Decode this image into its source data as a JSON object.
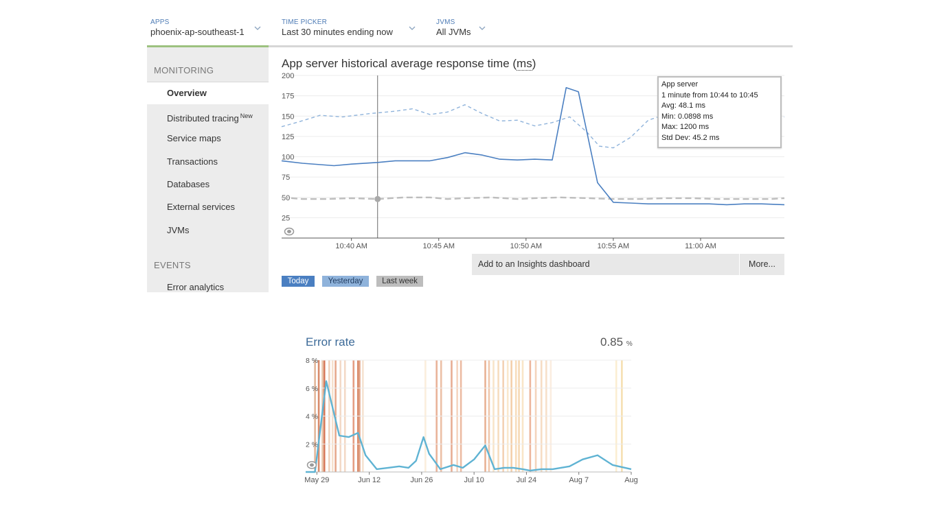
{
  "topbar": {
    "apps": {
      "caption": "APPS",
      "value": "phoenix-ap-southeast-1"
    },
    "time_picker": {
      "caption": "TIME PICKER",
      "value": "Last 30 minutes ending now"
    },
    "jvms": {
      "caption": "JVMS",
      "value": "All JVMs"
    }
  },
  "sidebar": {
    "monitoring_label": "MONITORING",
    "items": [
      {
        "label": "Overview",
        "active": true
      },
      {
        "label": "Distributed tracing",
        "badge": "New"
      },
      {
        "label": "Service maps"
      },
      {
        "label": "Transactions"
      },
      {
        "label": "Databases"
      },
      {
        "label": "External services"
      },
      {
        "label": "JVMs"
      }
    ],
    "events_label": "EVENTS",
    "events_items": [
      {
        "label": "Error analytics"
      }
    ]
  },
  "response_chart": {
    "title_prefix": "App server historical average response time (",
    "title_unit": "ms",
    "title_suffix": ")",
    "tooltip": {
      "lines": [
        "App server",
        "1 minute from 10:44 to 10:45",
        "Avg: 48.1 ms",
        "Min: 0.0898 ms",
        "Max: 1200 ms",
        "Std Dev: 45.2 ms"
      ]
    },
    "insights_label": "Add to an Insights dashboard",
    "more_label": "More...",
    "legend": [
      {
        "label": "Today",
        "color": "#4a7fc1"
      },
      {
        "label": "Yesterday",
        "color": "#8fb3db"
      },
      {
        "label": "Last week",
        "color": "#bdbdbd"
      }
    ]
  },
  "error_panel": {
    "title": "Error rate",
    "value": "0.85",
    "unit": "%"
  },
  "chart_data": [
    {
      "type": "line",
      "title": "App server historical average response time ( ms )",
      "ylim": [
        0,
        200
      ],
      "yticks": [
        25,
        50,
        75,
        100,
        125,
        150,
        175,
        200
      ],
      "xlim": [
        "10:36",
        "10:65"
      ],
      "xticks": [
        "10:40 AM",
        "10:45 AM",
        "10:50 AM",
        "10:55 AM",
        "11:00 AM"
      ],
      "xtick_minutes": [
        40,
        45,
        50,
        55,
        60
      ],
      "crosshair_minute": 41.5,
      "series": [
        {
          "name": "Today",
          "color": "#4a7fc1",
          "style": "solid",
          "x": [
            36,
            37.2,
            39,
            40,
            41.5,
            42.5,
            44.5,
            45.5,
            46.5,
            47.5,
            48.5,
            49.5,
            50.5,
            51.5,
            52.3,
            53,
            54.1,
            55,
            56,
            57,
            58,
            59.5,
            60.5,
            61.5,
            62.5,
            63.5,
            64.8
          ],
          "y": [
            95,
            92,
            89,
            91,
            93,
            95,
            95,
            99,
            105,
            102,
            97,
            96,
            97,
            96,
            185,
            180,
            68,
            44,
            43,
            42,
            42,
            42,
            42,
            41,
            42,
            42,
            41
          ]
        },
        {
          "name": "Yesterday",
          "color": "#8fb3db",
          "style": "dashed",
          "x": [
            36,
            37,
            38.2,
            39.5,
            41,
            42.5,
            43.5,
            44.5,
            45.5,
            46.5,
            47.5,
            48.5,
            49.5,
            50.5,
            51.5,
            52.5,
            53.5,
            54.2,
            55,
            56,
            57,
            58,
            59,
            60,
            61,
            62,
            63,
            64.8
          ],
          "y": [
            137,
            143,
            151,
            149,
            153,
            156,
            159,
            152,
            155,
            164,
            153,
            144,
            145,
            138,
            142,
            149,
            130,
            113,
            111,
            124,
            145,
            152,
            150,
            148,
            144,
            139,
            140,
            149
          ]
        },
        {
          "name": "Last week",
          "color": "#bdbdbd",
          "style": "dashed",
          "x": [
            36,
            37.2,
            38.5,
            40,
            41.5,
            43,
            44.5,
            45.5,
            46.5,
            48,
            49.5,
            50.5,
            52,
            53.5,
            55,
            56.5,
            58,
            59.5,
            61,
            62.5,
            64,
            64.8
          ],
          "y": [
            50,
            48,
            48,
            49,
            48,
            50,
            50,
            48,
            49,
            50,
            48,
            49,
            50,
            49,
            48,
            48,
            49,
            49,
            48,
            48,
            48,
            49
          ]
        }
      ]
    },
    {
      "type": "line",
      "title": "Error rate",
      "ylim": [
        0,
        8
      ],
      "yticks": [
        "2 %",
        "4 %",
        "6 %",
        "8 %"
      ],
      "ytick_values": [
        2,
        4,
        6,
        8
      ],
      "xticks": [
        "May 29",
        "Jun 12",
        "Jun 26",
        "Jul 10",
        "Jul 24",
        "Aug 7",
        "Aug"
      ],
      "xtick_days": [
        0,
        14,
        28,
        42,
        56,
        70,
        84
      ],
      "xlim": [
        -3,
        84
      ],
      "series": [
        {
          "name": "Error rate",
          "color": "#5fb3d3",
          "x": [
            -3,
            -0.5,
            2.5,
            6,
            8.5,
            11,
            13,
            16,
            19,
            22,
            24.5,
            26.5,
            28.5,
            30,
            33,
            36.5,
            39,
            42,
            45,
            47.5,
            50,
            52.5,
            55,
            57,
            60,
            63,
            67.5,
            71,
            75,
            79,
            84
          ],
          "y": [
            0,
            0,
            6.5,
            2.6,
            2.5,
            2.8,
            1.2,
            0.2,
            0.3,
            0.4,
            0.3,
            0.8,
            2.5,
            1.3,
            0.2,
            0.5,
            0.3,
            0.9,
            1.9,
            0.2,
            0.3,
            0.3,
            0.2,
            0.1,
            0.2,
            0.2,
            0.4,
            0.9,
            1.2,
            0.5,
            0.2
          ]
        }
      ],
      "event_bands": [
        {
          "x": -0.5,
          "color": "#e2b69a"
        },
        {
          "x": 0.5,
          "color": "#d98a6a"
        },
        {
          "x": 1.5,
          "color": "#e8c4a9"
        },
        {
          "x": 2.0,
          "color": "#d77a5b"
        },
        {
          "x": 3.3,
          "color": "#f0d2bd"
        },
        {
          "x": 4.2,
          "color": "#f6e0cd"
        },
        {
          "x": 5.0,
          "color": "#e6a88c"
        },
        {
          "x": 6.3,
          "color": "#f3d9c6"
        },
        {
          "x": 7.5,
          "color": "#f3d9c6"
        },
        {
          "x": 9.8,
          "color": "#e59d83"
        },
        {
          "x": 11.0,
          "color": "#d98a6a"
        },
        {
          "x": 11.4,
          "color": "#e2a488"
        },
        {
          "x": 12.3,
          "color": "#f6e3d1"
        },
        {
          "x": 29.0,
          "color": "#fbeedd"
        },
        {
          "x": 32.0,
          "color": "#e9b39a"
        },
        {
          "x": 33.2,
          "color": "#ecbfa6"
        },
        {
          "x": 36.0,
          "color": "#e7ad93"
        },
        {
          "x": 37.5,
          "color": "#f5d5c0"
        },
        {
          "x": 38.5,
          "color": "#ecbba2"
        },
        {
          "x": 45.0,
          "color": "#e8b294"
        },
        {
          "x": 46.0,
          "color": "#f0c8ad"
        },
        {
          "x": 47.2,
          "color": "#f8e4c9"
        },
        {
          "x": 48.5,
          "color": "#f6ddbf"
        },
        {
          "x": 49.8,
          "color": "#f3d2b4"
        },
        {
          "x": 51.0,
          "color": "#fae8cd"
        },
        {
          "x": 52.0,
          "color": "#f3cfaa"
        },
        {
          "x": 53.2,
          "color": "#f7ddbd"
        },
        {
          "x": 54.0,
          "color": "#f6d9b5"
        },
        {
          "x": 55.0,
          "color": "#f9e5c8"
        },
        {
          "x": 57.0,
          "color": "#ecb59b"
        },
        {
          "x": 58.5,
          "color": "#f4d4bc"
        },
        {
          "x": 60.0,
          "color": "#f6dcc3"
        },
        {
          "x": 61.3,
          "color": "#f7e0ca"
        },
        {
          "x": 62.5,
          "color": "#fbede0"
        },
        {
          "x": 80.0,
          "color": "#fbeed2"
        },
        {
          "x": 81.5,
          "color": "#f6dfb2"
        }
      ]
    }
  ]
}
